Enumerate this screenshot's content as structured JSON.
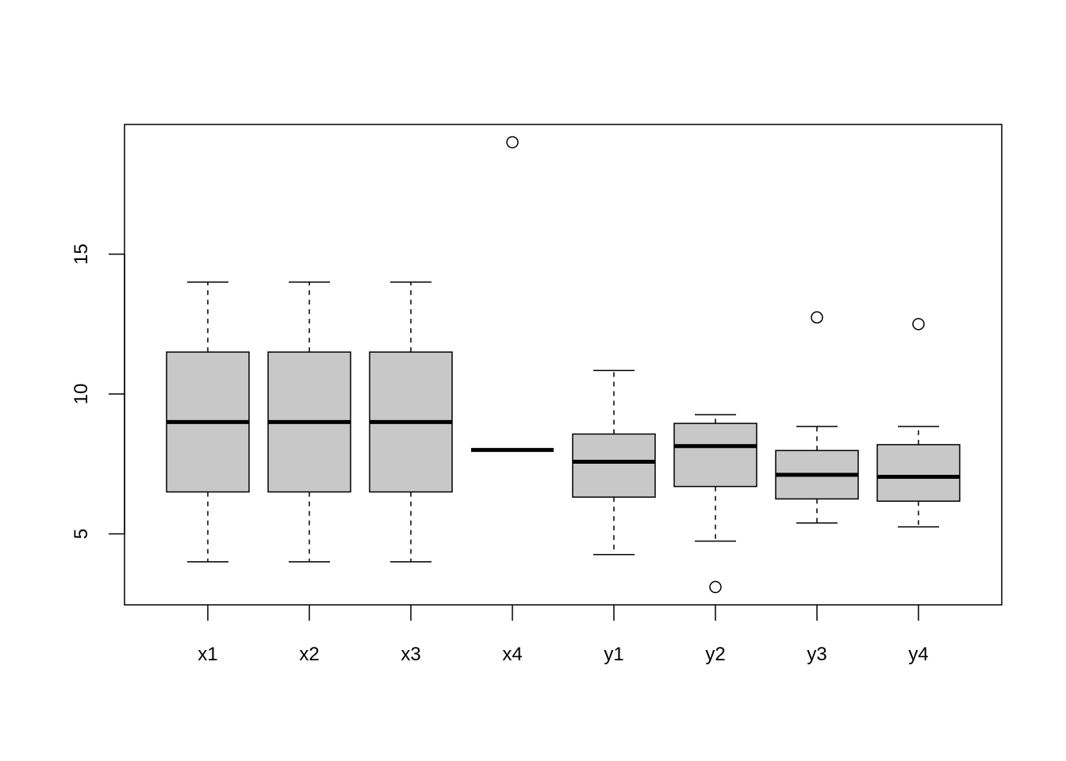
{
  "chart_data": {
    "type": "boxplot",
    "title": "",
    "xlabel": "",
    "ylabel": "",
    "ylim": [
      2.464,
      19.636
    ],
    "yticks": [
      5,
      10,
      15
    ],
    "ytick_labels": [
      "5",
      "10",
      "15"
    ],
    "categories": [
      "x1",
      "x2",
      "x3",
      "x4",
      "y1",
      "y2",
      "y3",
      "y4"
    ],
    "box_fill": "#c8c8c8",
    "grid": false,
    "boxes": [
      {
        "name": "x1",
        "whisker_low": 4,
        "q1": 6.5,
        "median": 9,
        "q3": 11.5,
        "whisker_high": 14,
        "outliers": []
      },
      {
        "name": "x2",
        "whisker_low": 4,
        "q1": 6.5,
        "median": 9,
        "q3": 11.5,
        "whisker_high": 14,
        "outliers": []
      },
      {
        "name": "x3",
        "whisker_low": 4,
        "q1": 6.5,
        "median": 9,
        "q3": 11.5,
        "whisker_high": 14,
        "outliers": []
      },
      {
        "name": "x4",
        "whisker_low": 8,
        "q1": 8,
        "median": 8,
        "q3": 8,
        "whisker_high": 8,
        "outliers": [
          19
        ]
      },
      {
        "name": "y1",
        "whisker_low": 4.26,
        "q1": 6.315,
        "median": 7.58,
        "q3": 8.57,
        "whisker_high": 10.84,
        "outliers": []
      },
      {
        "name": "y2",
        "whisker_low": 4.74,
        "q1": 6.695,
        "median": 8.14,
        "q3": 8.95,
        "whisker_high": 9.26,
        "outliers": [
          3.1
        ]
      },
      {
        "name": "y3",
        "whisker_low": 5.39,
        "q1": 6.25,
        "median": 7.11,
        "q3": 7.98,
        "whisker_high": 8.84,
        "outliers": [
          12.74
        ]
      },
      {
        "name": "y4",
        "whisker_low": 5.25,
        "q1": 6.17,
        "median": 7.04,
        "q3": 8.19,
        "whisker_high": 8.84,
        "outliers": [
          12.5
        ]
      }
    ]
  }
}
